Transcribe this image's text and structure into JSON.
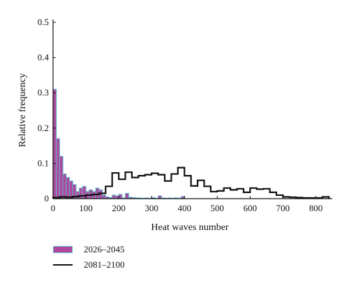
{
  "chart_data": {
    "type": "bar",
    "xlabel": "Heat waves number",
    "ylabel": "Relative frequency",
    "xlim": [
      0,
      850
    ],
    "ylim": [
      0,
      0.5
    ],
    "x_ticks": [
      0,
      100,
      200,
      300,
      400,
      500,
      600,
      700,
      800
    ],
    "y_ticks": [
      0,
      0.1,
      0.2,
      0.3,
      0.4,
      0.5
    ],
    "x_tick_labels": [
      "0",
      "100",
      "200",
      "300",
      "400",
      "500",
      "600",
      "700",
      "800"
    ],
    "y_tick_labels": [
      "0",
      "0.1",
      "0.2",
      "0.3",
      "0.4",
      "0.5"
    ],
    "legend_position": "bottom-left",
    "bin_width": 20,
    "series": [
      {
        "name": "2026–2045",
        "style": "bar",
        "color": "#b0479c",
        "edge_color": "#5fb2c9",
        "bin_starts": [
          0,
          10,
          20,
          30,
          40,
          50,
          60,
          70,
          80,
          90,
          100,
          110,
          120,
          130,
          140,
          150,
          160,
          170,
          180,
          190,
          200,
          210,
          220,
          230,
          240,
          250,
          260,
          270,
          280,
          290,
          300,
          310,
          320,
          330,
          340,
          350,
          360,
          370,
          380,
          390
        ],
        "values": [
          0.31,
          0.17,
          0.12,
          0.07,
          0.06,
          0.05,
          0.04,
          0.02,
          0.03,
          0.035,
          0.02,
          0.025,
          0.02,
          0.03,
          0.025,
          0.01,
          0.005,
          0.003,
          0.01,
          0.008,
          0.012,
          0.002,
          0.015,
          0.004,
          0.003,
          0.002,
          0.002,
          0.001,
          0.002,
          0.001,
          0.003,
          0.001,
          0.008,
          0.002,
          0.001,
          0.002,
          0.001,
          0.002,
          0.001,
          0.006
        ]
      },
      {
        "name": "2081–2100",
        "style": "step",
        "color": "#111111",
        "bin_starts": [
          0,
          20,
          40,
          60,
          80,
          100,
          120,
          140,
          160,
          180,
          200,
          220,
          240,
          260,
          280,
          300,
          320,
          340,
          360,
          380,
          400,
          420,
          440,
          460,
          480,
          500,
          520,
          540,
          560,
          580,
          600,
          620,
          640,
          660,
          680,
          700,
          720,
          740,
          760,
          780,
          800,
          820
        ],
        "values": [
          0.003,
          0.005,
          0.004,
          0.006,
          0.008,
          0.01,
          0.012,
          0.015,
          0.035,
          0.073,
          0.055,
          0.075,
          0.06,
          0.065,
          0.068,
          0.072,
          0.068,
          0.05,
          0.07,
          0.088,
          0.065,
          0.036,
          0.052,
          0.035,
          0.02,
          0.022,
          0.03,
          0.025,
          0.028,
          0.018,
          0.03,
          0.027,
          0.028,
          0.018,
          0.01,
          0.005,
          0.004,
          0.003,
          0.002,
          0.002,
          0.002,
          0.005
        ]
      }
    ]
  }
}
